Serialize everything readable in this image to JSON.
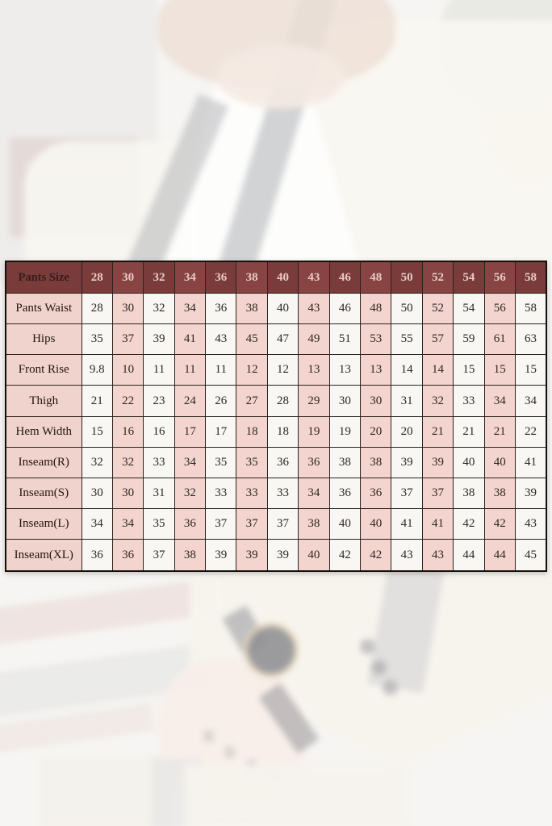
{
  "chart_data": {
    "type": "table",
    "title": "Pants Size",
    "columns": [
      "28",
      "30",
      "32",
      "34",
      "36",
      "38",
      "40",
      "43",
      "46",
      "48",
      "50",
      "52",
      "54",
      "56",
      "58"
    ],
    "rows": [
      {
        "label": "Pants Waist",
        "values": [
          "28",
          "30",
          "32",
          "34",
          "36",
          "38",
          "40",
          "43",
          "46",
          "48",
          "50",
          "52",
          "54",
          "56",
          "58"
        ]
      },
      {
        "label": "Hips",
        "values": [
          "35",
          "37",
          "39",
          "41",
          "43",
          "45",
          "47",
          "49",
          "51",
          "53",
          "55",
          "57",
          "59",
          "61",
          "63"
        ]
      },
      {
        "label": "Front Rise",
        "values": [
          "9.8",
          "10",
          "11",
          "11",
          "11",
          "12",
          "12",
          "13",
          "13",
          "13",
          "14",
          "14",
          "15",
          "15",
          "15"
        ]
      },
      {
        "label": "Thigh",
        "values": [
          "21",
          "22",
          "23",
          "24",
          "26",
          "27",
          "28",
          "29",
          "30",
          "30",
          "31",
          "32",
          "33",
          "34",
          "34"
        ]
      },
      {
        "label": "Hem Width",
        "values": [
          "15",
          "16",
          "16",
          "17",
          "17",
          "18",
          "18",
          "19",
          "19",
          "20",
          "20",
          "21",
          "21",
          "21",
          "22"
        ]
      },
      {
        "label": "Inseam(R)",
        "values": [
          "32",
          "32",
          "33",
          "34",
          "35",
          "35",
          "36",
          "36",
          "38",
          "38",
          "39",
          "39",
          "40",
          "40",
          "41"
        ]
      },
      {
        "label": "Inseam(S)",
        "values": [
          "30",
          "30",
          "31",
          "32",
          "33",
          "33",
          "33",
          "34",
          "36",
          "36",
          "37",
          "37",
          "38",
          "38",
          "39"
        ]
      },
      {
        "label": "Inseam(L)",
        "values": [
          "34",
          "34",
          "35",
          "36",
          "37",
          "37",
          "37",
          "38",
          "40",
          "40",
          "41",
          "41",
          "42",
          "42",
          "43"
        ]
      },
      {
        "label": "Inseam(XL)",
        "values": [
          "36",
          "36",
          "37",
          "38",
          "39",
          "39",
          "39",
          "40",
          "42",
          "42",
          "43",
          "43",
          "44",
          "44",
          "45"
        ]
      }
    ],
    "layout": {
      "label_column_header": "Pants Size",
      "column_striping": "alternating white/pink starting white",
      "grid": true
    }
  },
  "colors": {
    "header_bg": "#7a3b3b",
    "header_bg_alt": "#884343",
    "header_text": "#e8cbc6",
    "header_label_text": "#3a1b1d",
    "label_bg": "#f1d3cd",
    "label_text": "#221510",
    "cell_white": "#f8f7f3",
    "cell_pink": "#f3d4ce",
    "cell_text": "#2f2723",
    "border": "#2a231d",
    "border_outer": "#15100d"
  }
}
